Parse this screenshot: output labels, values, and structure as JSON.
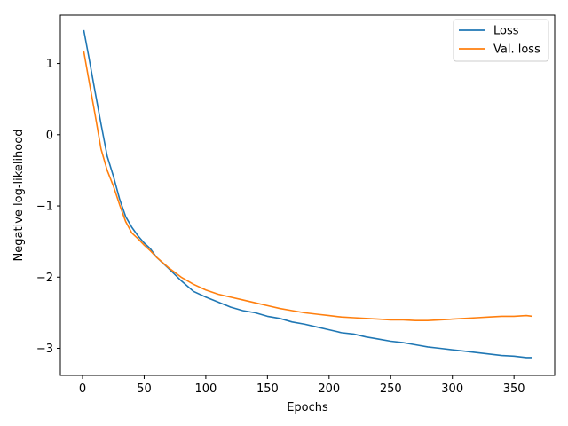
{
  "chart_data": {
    "type": "line",
    "title": "",
    "xlabel": "Epochs",
    "ylabel": "Negative log-likelihood",
    "xlim": [
      -18,
      383
    ],
    "ylim": [
      -3.38,
      1.68
    ],
    "xticks": [
      0,
      50,
      100,
      150,
      200,
      250,
      300,
      350
    ],
    "yticks": [
      -3,
      -2,
      -1,
      0,
      1
    ],
    "ytick_labels": [
      "−3",
      "−2",
      "−1",
      "0",
      "1"
    ],
    "grid": false,
    "legend_position": "top-right",
    "series": [
      {
        "name": "Loss",
        "color": "#1f77b4",
        "x": [
          1,
          5,
          10,
          15,
          20,
          25,
          30,
          35,
          40,
          45,
          50,
          55,
          60,
          70,
          80,
          90,
          100,
          110,
          120,
          130,
          140,
          150,
          160,
          170,
          180,
          190,
          200,
          210,
          220,
          230,
          240,
          250,
          260,
          270,
          280,
          290,
          300,
          310,
          320,
          330,
          340,
          350,
          360,
          365
        ],
        "y": [
          1.47,
          1.1,
          0.62,
          0.15,
          -0.3,
          -0.58,
          -0.9,
          -1.15,
          -1.3,
          -1.42,
          -1.52,
          -1.6,
          -1.72,
          -1.88,
          -2.05,
          -2.2,
          -2.28,
          -2.35,
          -2.42,
          -2.47,
          -2.5,
          -2.55,
          -2.58,
          -2.63,
          -2.66,
          -2.7,
          -2.74,
          -2.78,
          -2.8,
          -2.84,
          -2.87,
          -2.9,
          -2.92,
          -2.95,
          -2.98,
          -3.0,
          -3.02,
          -3.04,
          -3.06,
          -3.08,
          -3.1,
          -3.11,
          -3.13,
          -3.13
        ]
      },
      {
        "name": "Val. loss",
        "color": "#ff7f0e",
        "x": [
          1,
          5,
          10,
          15,
          20,
          25,
          30,
          35,
          40,
          45,
          50,
          55,
          60,
          70,
          80,
          90,
          100,
          110,
          120,
          130,
          140,
          150,
          160,
          170,
          180,
          190,
          200,
          210,
          220,
          230,
          240,
          250,
          260,
          270,
          280,
          290,
          300,
          310,
          320,
          330,
          340,
          350,
          360,
          365
        ],
        "y": [
          1.17,
          0.78,
          0.3,
          -0.2,
          -0.5,
          -0.72,
          -0.98,
          -1.22,
          -1.38,
          -1.46,
          -1.55,
          -1.63,
          -1.72,
          -1.87,
          -2.0,
          -2.1,
          -2.18,
          -2.24,
          -2.28,
          -2.32,
          -2.36,
          -2.4,
          -2.44,
          -2.47,
          -2.5,
          -2.52,
          -2.54,
          -2.56,
          -2.57,
          -2.58,
          -2.59,
          -2.6,
          -2.6,
          -2.61,
          -2.61,
          -2.6,
          -2.59,
          -2.58,
          -2.57,
          -2.56,
          -2.55,
          -2.55,
          -2.54,
          -2.55
        ]
      }
    ]
  }
}
